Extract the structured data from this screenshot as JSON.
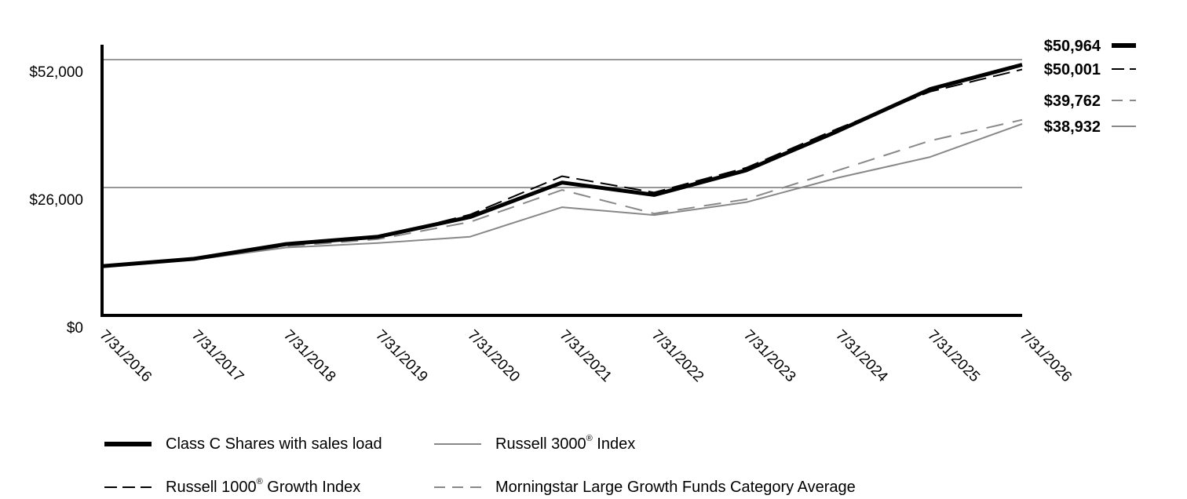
{
  "chart_data": {
    "type": "line",
    "title": "",
    "xlabel": "",
    "ylabel": "",
    "x": [
      "7/31/2016",
      "7/31/2017",
      "7/31/2018",
      "7/31/2019",
      "7/31/2020",
      "7/31/2021",
      "7/31/2022",
      "7/31/2023",
      "7/31/2024",
      "7/31/2025",
      "7/31/2026"
    ],
    "ylim": [
      0,
      52000
    ],
    "y_ticks": [
      {
        "value": 0,
        "label": "$0"
      },
      {
        "value": 26000,
        "label": "$26,000"
      },
      {
        "value": 52000,
        "label": "$52,000"
      }
    ],
    "grid": {
      "horizontal": true,
      "lines_at": [
        26000,
        52000
      ]
    },
    "legend_position": "bottom",
    "series": [
      {
        "name": "Class C Shares with sales load",
        "name_parts": [
          "Class C Shares with sales load",
          "",
          ""
        ],
        "style": "solid-thick",
        "color": "#000000",
        "end_label": "$50,964",
        "values": [
          10000,
          11500,
          14500,
          16000,
          20000,
          27000,
          24500,
          29500,
          37500,
          46000,
          50964
        ]
      },
      {
        "name": "Russell 1000® Growth Index",
        "name_parts": [
          "Russell 1000",
          "®",
          " Growth Index"
        ],
        "style": "dashed-long",
        "color": "#000000",
        "end_label": "$50,001",
        "values": [
          10000,
          11500,
          14300,
          15800,
          20500,
          28300,
          25000,
          30000,
          38000,
          45500,
          50001
        ]
      },
      {
        "name": "Morningstar Large Growth Funds Category Average",
        "name_parts": [
          "Morningstar Large Growth Funds Category Average",
          "",
          ""
        ],
        "style": "dashed",
        "color": "#888888",
        "end_label": "$39,762",
        "values": [
          10000,
          11400,
          14000,
          15500,
          19000,
          25500,
          20700,
          23600,
          29500,
          35500,
          39762
        ]
      },
      {
        "name": "Russell 3000® Index",
        "name_parts": [
          "Russell 3000",
          "®",
          " Index"
        ],
        "style": "solid-thin",
        "color": "#888888",
        "end_label": "$38,932",
        "values": [
          10000,
          11300,
          13800,
          14700,
          16000,
          22000,
          20400,
          23000,
          28000,
          32200,
          38932
        ]
      }
    ]
  }
}
